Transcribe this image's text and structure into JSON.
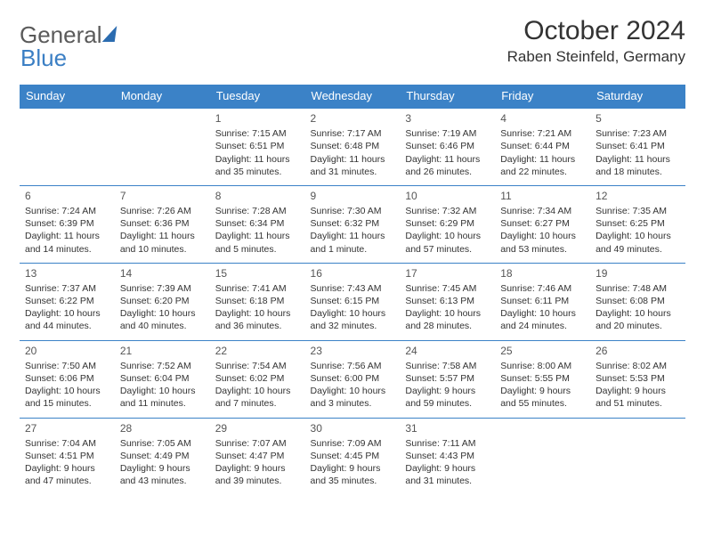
{
  "brand": {
    "part1": "General",
    "part2": "Blue"
  },
  "title": "October 2024",
  "location": "Raben Steinfeld, Germany",
  "headerBg": "#3b82c7",
  "headerFg": "#ffffff",
  "borderColor": "#3b82c7",
  "dayHeaders": [
    "Sunday",
    "Monday",
    "Tuesday",
    "Wednesday",
    "Thursday",
    "Friday",
    "Saturday"
  ],
  "weeks": [
    [
      null,
      null,
      {
        "d": "1",
        "sr": "7:15 AM",
        "ss": "6:51 PM",
        "dl": "11 hours and 35 minutes."
      },
      {
        "d": "2",
        "sr": "7:17 AM",
        "ss": "6:48 PM",
        "dl": "11 hours and 31 minutes."
      },
      {
        "d": "3",
        "sr": "7:19 AM",
        "ss": "6:46 PM",
        "dl": "11 hours and 26 minutes."
      },
      {
        "d": "4",
        "sr": "7:21 AM",
        "ss": "6:44 PM",
        "dl": "11 hours and 22 minutes."
      },
      {
        "d": "5",
        "sr": "7:23 AM",
        "ss": "6:41 PM",
        "dl": "11 hours and 18 minutes."
      }
    ],
    [
      {
        "d": "6",
        "sr": "7:24 AM",
        "ss": "6:39 PM",
        "dl": "11 hours and 14 minutes."
      },
      {
        "d": "7",
        "sr": "7:26 AM",
        "ss": "6:36 PM",
        "dl": "11 hours and 10 minutes."
      },
      {
        "d": "8",
        "sr": "7:28 AM",
        "ss": "6:34 PM",
        "dl": "11 hours and 5 minutes."
      },
      {
        "d": "9",
        "sr": "7:30 AM",
        "ss": "6:32 PM",
        "dl": "11 hours and 1 minute."
      },
      {
        "d": "10",
        "sr": "7:32 AM",
        "ss": "6:29 PM",
        "dl": "10 hours and 57 minutes."
      },
      {
        "d": "11",
        "sr": "7:34 AM",
        "ss": "6:27 PM",
        "dl": "10 hours and 53 minutes."
      },
      {
        "d": "12",
        "sr": "7:35 AM",
        "ss": "6:25 PM",
        "dl": "10 hours and 49 minutes."
      }
    ],
    [
      {
        "d": "13",
        "sr": "7:37 AM",
        "ss": "6:22 PM",
        "dl": "10 hours and 44 minutes."
      },
      {
        "d": "14",
        "sr": "7:39 AM",
        "ss": "6:20 PM",
        "dl": "10 hours and 40 minutes."
      },
      {
        "d": "15",
        "sr": "7:41 AM",
        "ss": "6:18 PM",
        "dl": "10 hours and 36 minutes."
      },
      {
        "d": "16",
        "sr": "7:43 AM",
        "ss": "6:15 PM",
        "dl": "10 hours and 32 minutes."
      },
      {
        "d": "17",
        "sr": "7:45 AM",
        "ss": "6:13 PM",
        "dl": "10 hours and 28 minutes."
      },
      {
        "d": "18",
        "sr": "7:46 AM",
        "ss": "6:11 PM",
        "dl": "10 hours and 24 minutes."
      },
      {
        "d": "19",
        "sr": "7:48 AM",
        "ss": "6:08 PM",
        "dl": "10 hours and 20 minutes."
      }
    ],
    [
      {
        "d": "20",
        "sr": "7:50 AM",
        "ss": "6:06 PM",
        "dl": "10 hours and 15 minutes."
      },
      {
        "d": "21",
        "sr": "7:52 AM",
        "ss": "6:04 PM",
        "dl": "10 hours and 11 minutes."
      },
      {
        "d": "22",
        "sr": "7:54 AM",
        "ss": "6:02 PM",
        "dl": "10 hours and 7 minutes."
      },
      {
        "d": "23",
        "sr": "7:56 AM",
        "ss": "6:00 PM",
        "dl": "10 hours and 3 minutes."
      },
      {
        "d": "24",
        "sr": "7:58 AM",
        "ss": "5:57 PM",
        "dl": "9 hours and 59 minutes."
      },
      {
        "d": "25",
        "sr": "8:00 AM",
        "ss": "5:55 PM",
        "dl": "9 hours and 55 minutes."
      },
      {
        "d": "26",
        "sr": "8:02 AM",
        "ss": "5:53 PM",
        "dl": "9 hours and 51 minutes."
      }
    ],
    [
      {
        "d": "27",
        "sr": "7:04 AM",
        "ss": "4:51 PM",
        "dl": "9 hours and 47 minutes."
      },
      {
        "d": "28",
        "sr": "7:05 AM",
        "ss": "4:49 PM",
        "dl": "9 hours and 43 minutes."
      },
      {
        "d": "29",
        "sr": "7:07 AM",
        "ss": "4:47 PM",
        "dl": "9 hours and 39 minutes."
      },
      {
        "d": "30",
        "sr": "7:09 AM",
        "ss": "4:45 PM",
        "dl": "9 hours and 35 minutes."
      },
      {
        "d": "31",
        "sr": "7:11 AM",
        "ss": "4:43 PM",
        "dl": "9 hours and 31 minutes."
      },
      null,
      null
    ]
  ],
  "labels": {
    "sunrise": "Sunrise: ",
    "sunset": "Sunset: ",
    "daylight": "Daylight: "
  }
}
